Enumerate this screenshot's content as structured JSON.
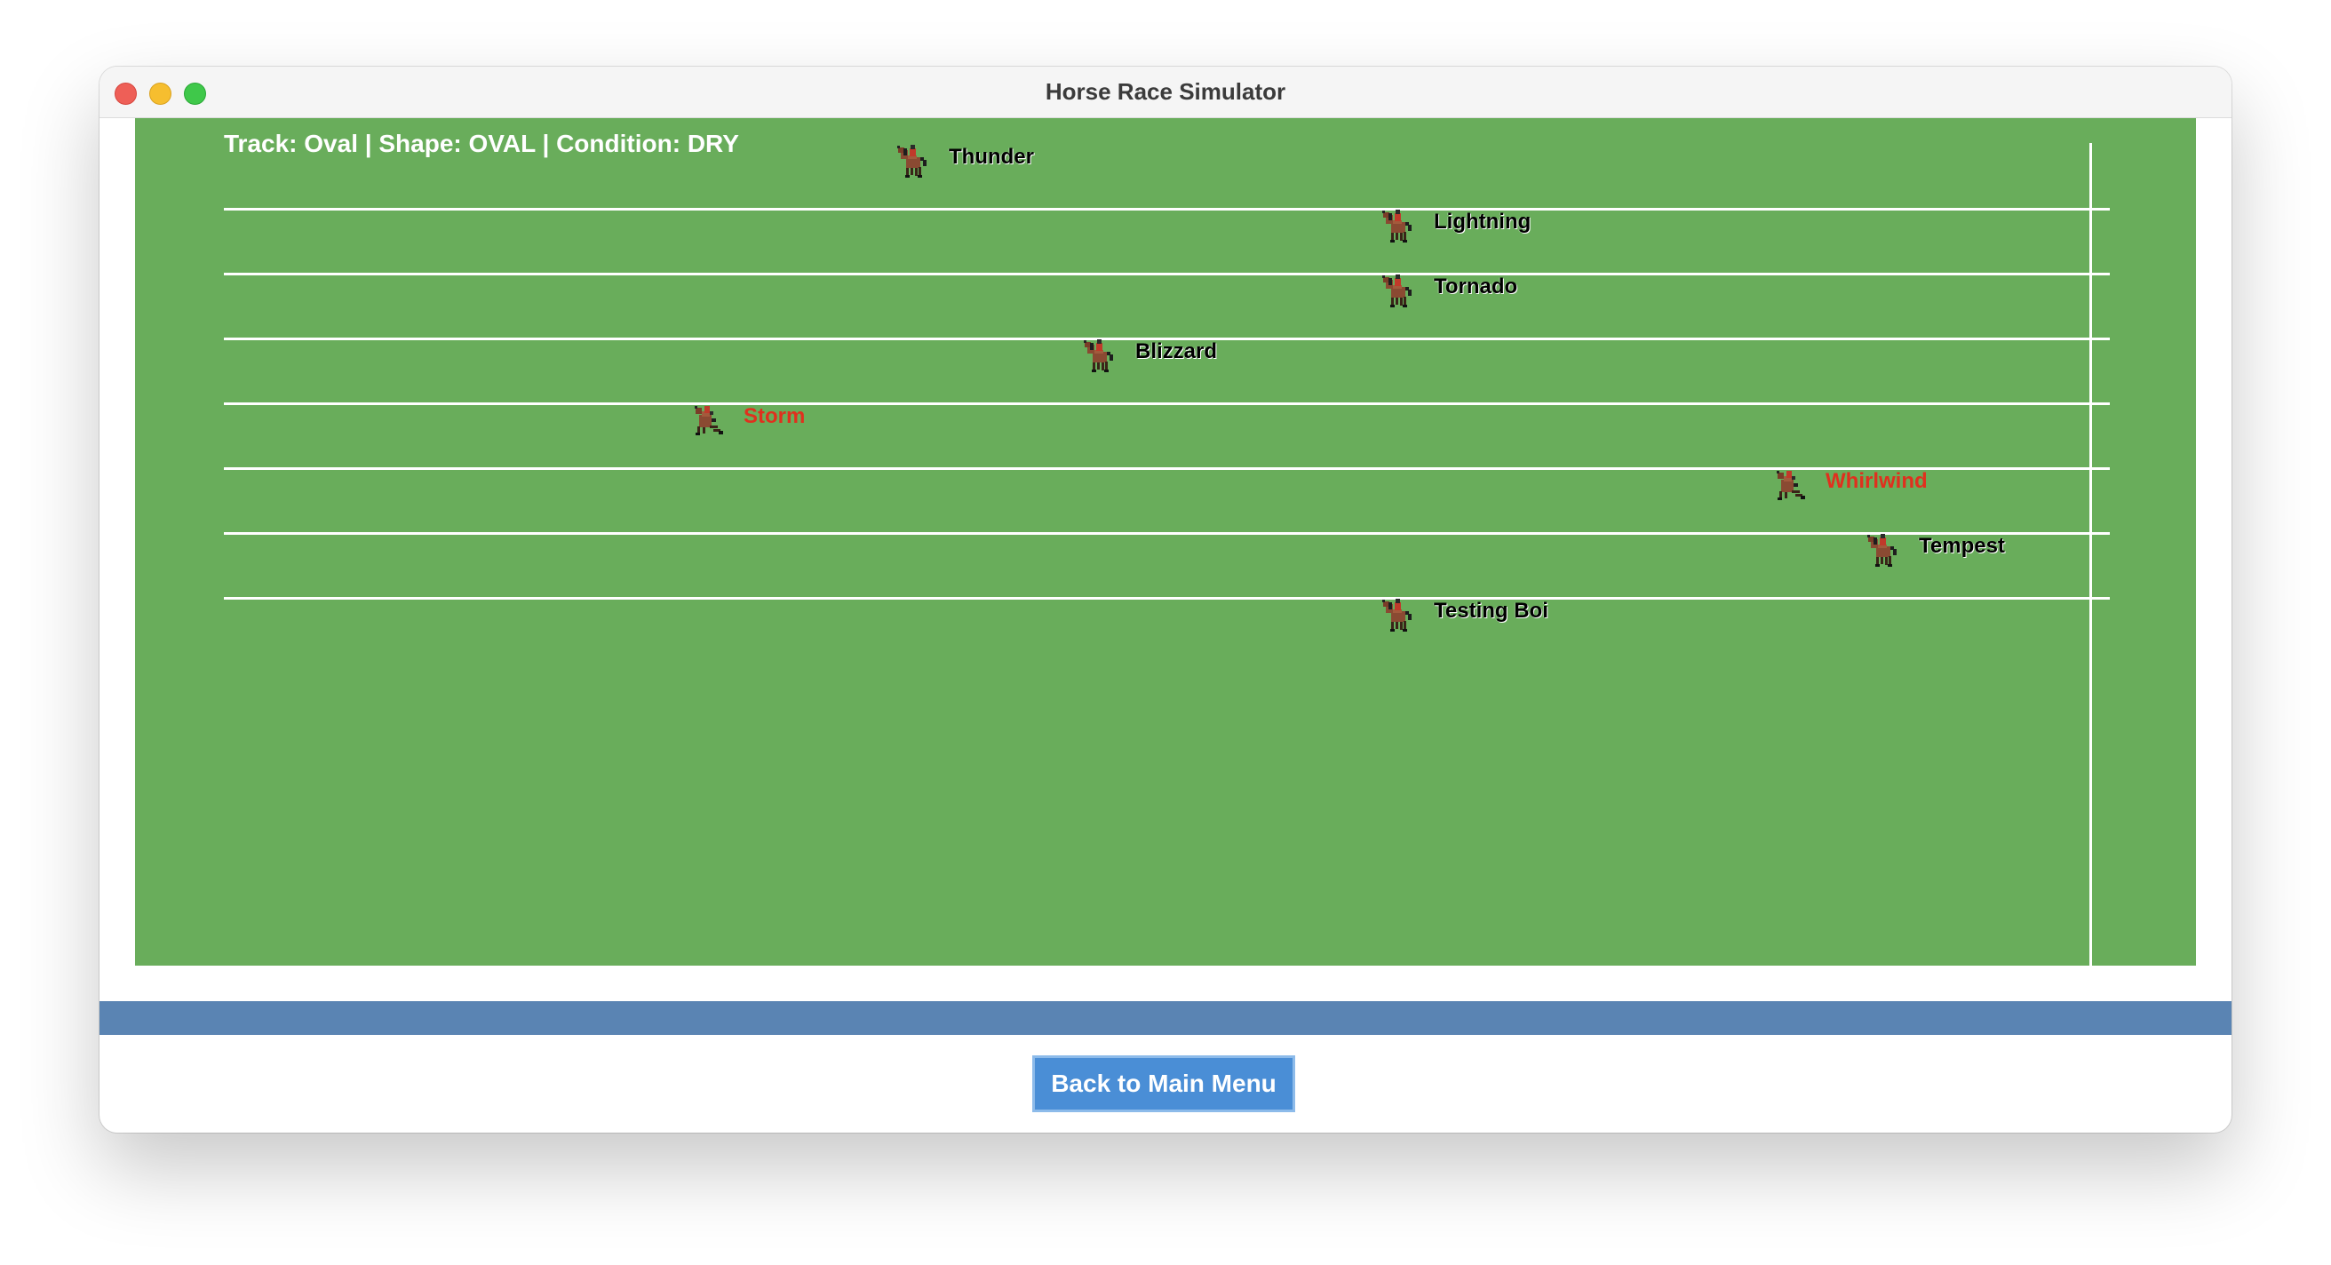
{
  "window": {
    "title": "Horse Race Simulator"
  },
  "track": {
    "info": "Track: Oval | Shape: OVAL | Condition: DRY",
    "horses": [
      {
        "name": "Thunder",
        "progress": 0.37,
        "fallen": false
      },
      {
        "name": "Lightning",
        "progress": 0.63,
        "fallen": false
      },
      {
        "name": "Tornado",
        "progress": 0.63,
        "fallen": false
      },
      {
        "name": "Blizzard",
        "progress": 0.47,
        "fallen": false
      },
      {
        "name": "Storm",
        "progress": 0.26,
        "fallen": true
      },
      {
        "name": "Whirlwind",
        "progress": 0.84,
        "fallen": true
      },
      {
        "name": "Tempest",
        "progress": 0.89,
        "fallen": false
      },
      {
        "name": "Testing Boi",
        "progress": 0.63,
        "fallen": false
      }
    ]
  },
  "footer": {
    "back_button_label": "Back to Main Menu"
  },
  "colors": {
    "track_green": "#69ad5b",
    "lane_line": "#ffffff",
    "fallen_name": "#e0301e",
    "status_bar": "#5a84b3",
    "button_blue": "#4a8ed6"
  }
}
